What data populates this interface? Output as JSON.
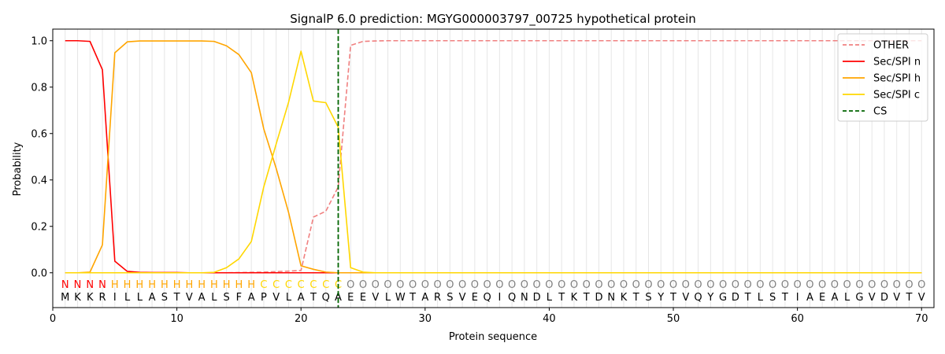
{
  "chart_data": {
    "type": "line",
    "title": "SignalP 6.0 prediction: MGYG000003797_00725 hypothetical protein",
    "xlabel": "Protein sequence",
    "ylabel": "Probability",
    "xlim": [
      0,
      71
    ],
    "ylim": [
      -0.15,
      1.05
    ],
    "xticks": [
      0,
      10,
      20,
      30,
      40,
      50,
      60,
      70
    ],
    "yticks": [
      0.0,
      0.2,
      0.4,
      0.6,
      0.8,
      1.0
    ],
    "ytick_labels": [
      "0.0",
      "0.2",
      "0.4",
      "0.6",
      "0.8",
      "1.0"
    ],
    "grid": "vertical lines at each residue",
    "legend_position": "top-right",
    "sequence": "MKKRILLASTVALSFAPVLATQAEEVLWTARSVEQIQNDLTKTDNKTSYTVQYGDTLSTIAEALGVDVTV",
    "labels": "NNNNHHHHHHHHHHHHCCCCCCCOOOOOOOOOOOOOOOOOOOOOOOOOOOOOOOOOOOOOOOOOOOOOOO",
    "label_colors": {
      "N": "#ff0000",
      "H": "#ffa500",
      "C": "#ffd700",
      "O": "#808080"
    },
    "cleavage_site": 23,
    "x": [
      1,
      2,
      3,
      4,
      5,
      6,
      7,
      8,
      9,
      10,
      11,
      12,
      13,
      14,
      15,
      16,
      17,
      18,
      19,
      20,
      21,
      22,
      23,
      24,
      25,
      26,
      27,
      28,
      29,
      30,
      31,
      32,
      33,
      34,
      35,
      36,
      37,
      38,
      39,
      40,
      41,
      42,
      43,
      44,
      45,
      46,
      47,
      48,
      49,
      50,
      51,
      52,
      53,
      54,
      55,
      56,
      57,
      58,
      59,
      60,
      61,
      62,
      63,
      64,
      65,
      66,
      67,
      68,
      69,
      70
    ],
    "series": [
      {
        "name": "OTHER",
        "color": "#f08080",
        "dash": "dashed",
        "values": [
          0,
          0,
          0,
          0,
          0,
          0,
          0,
          0,
          0,
          0,
          0,
          0,
          0,
          0,
          0.001,
          0.002,
          0.003,
          0.005,
          0.007,
          0.01,
          0.24,
          0.265,
          0.37,
          0.98,
          0.997,
          0.999,
          1,
          1,
          1,
          1,
          1,
          1,
          1,
          1,
          1,
          1,
          1,
          1,
          1,
          1,
          1,
          1,
          1,
          1,
          1,
          1,
          1,
          1,
          1,
          1,
          1,
          1,
          1,
          1,
          1,
          1,
          1,
          1,
          1,
          1,
          1,
          1,
          1,
          1,
          1,
          1,
          1,
          1,
          1,
          1
        ]
      },
      {
        "name": "Sec/SPI n",
        "color": "#ff0000",
        "dash": "solid",
        "values": [
          1.0,
          1.0,
          0.997,
          0.875,
          0.05,
          0.006,
          0.002,
          0.001,
          0.001,
          0.001,
          0,
          0,
          0,
          0,
          0,
          0,
          0,
          0,
          0,
          0,
          0,
          0,
          0,
          0,
          0,
          0,
          0,
          0,
          0,
          0,
          0,
          0,
          0,
          0,
          0,
          0,
          0,
          0,
          0,
          0,
          0,
          0,
          0,
          0,
          0,
          0,
          0,
          0,
          0,
          0,
          0,
          0,
          0,
          0,
          0,
          0,
          0,
          0,
          0,
          0,
          0,
          0,
          0,
          0,
          0,
          0,
          0,
          0,
          0,
          0
        ]
      },
      {
        "name": "Sec/SPI h",
        "color": "#ffa500",
        "dash": "solid",
        "values": [
          0,
          0,
          0.003,
          0.12,
          0.948,
          0.995,
          0.999,
          0.999,
          0.999,
          0.999,
          0.999,
          0.999,
          0.997,
          0.978,
          0.94,
          0.862,
          0.62,
          0.45,
          0.26,
          0.03,
          0.015,
          0.003,
          0,
          0,
          0,
          0,
          0,
          0,
          0,
          0,
          0,
          0,
          0,
          0,
          0,
          0,
          0,
          0,
          0,
          0,
          0,
          0,
          0,
          0,
          0,
          0,
          0,
          0,
          0,
          0,
          0,
          0,
          0,
          0,
          0,
          0,
          0,
          0,
          0,
          0,
          0,
          0,
          0,
          0,
          0,
          0,
          0,
          0,
          0,
          0
        ]
      },
      {
        "name": "Sec/SPI c",
        "color": "#ffd700",
        "dash": "solid",
        "values": [
          0,
          0,
          0,
          0,
          0,
          0,
          0,
          0,
          0,
          0,
          0,
          0,
          0.002,
          0.022,
          0.06,
          0.135,
          0.37,
          0.555,
          0.735,
          0.955,
          0.74,
          0.733,
          0.627,
          0.022,
          0.003,
          0,
          0,
          0,
          0,
          0,
          0,
          0,
          0,
          0,
          0,
          0,
          0,
          0,
          0,
          0,
          0,
          0,
          0,
          0,
          0,
          0,
          0,
          0,
          0,
          0,
          0,
          0,
          0,
          0,
          0,
          0,
          0,
          0,
          0,
          0,
          0,
          0,
          0,
          0,
          0,
          0,
          0,
          0,
          0,
          0
        ]
      }
    ],
    "legend": [
      "OTHER",
      "Sec/SPI n",
      "Sec/SPI h",
      "Sec/SPI c",
      "CS"
    ],
    "cs_color": "#006400"
  }
}
